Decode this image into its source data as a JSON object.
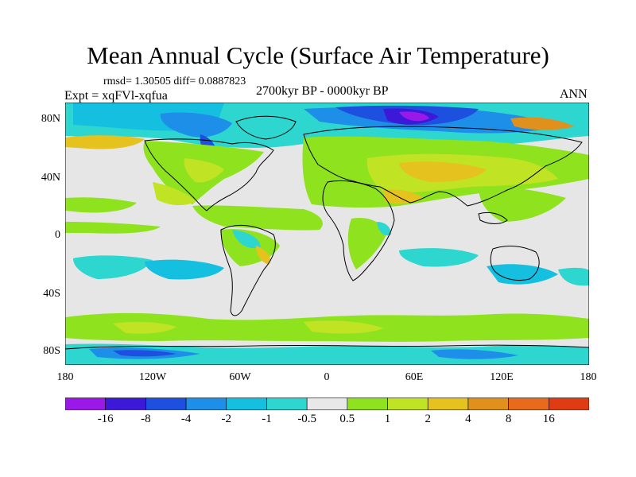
{
  "title": "Mean Annual Cycle (Surface Air Temperature)",
  "stats": "rmsd= 1.30505 diff= 0.0887823",
  "experiment": "Expt = xqFVl-xqfua",
  "period": "2700kyr BP - 0000kyr BP",
  "season": "ANN",
  "lat_labels": [
    "80N",
    "40N",
    "0",
    "40S",
    "80S"
  ],
  "lon_labels": [
    "180",
    "120W",
    "60W",
    "0",
    "60E",
    "120E",
    "180"
  ],
  "colorbar": {
    "labels": [
      "-16",
      "-8",
      "-4",
      "-2",
      "-1",
      "-0.5",
      "0.5",
      "1",
      "2",
      "4",
      "8",
      "16"
    ],
    "colors": [
      "#9b19e8",
      "#3c19d9",
      "#1e50e0",
      "#1e8fe8",
      "#14bfe0",
      "#2ed6d0",
      "#e8e8e8",
      "#8fe31e",
      "#c0e324",
      "#e6c21f",
      "#e0901c",
      "#e86a1c",
      "#e03c14"
    ]
  }
}
